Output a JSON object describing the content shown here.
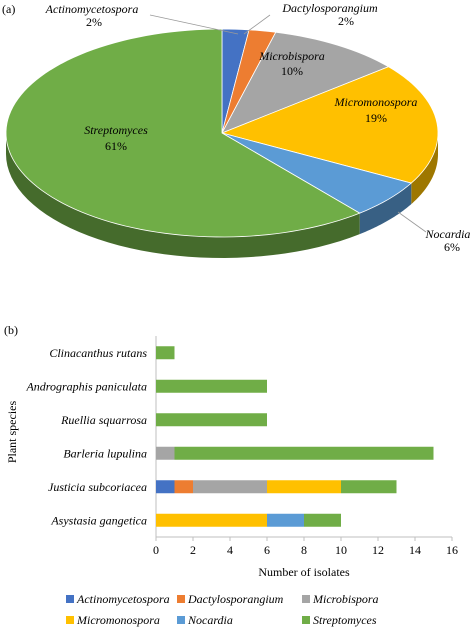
{
  "chart_data": [
    {
      "type": "pie",
      "panel_label": "(a)",
      "slices": [
        {
          "name": "Actinomycetospora",
          "pct_label": "2%",
          "value": 2,
          "color": "#4472C4"
        },
        {
          "name": "Dactylosporangium",
          "pct_label": "2%",
          "value": 2,
          "color": "#ED7D31"
        },
        {
          "name": "Microbispora",
          "pct_label": "10%",
          "value": 10,
          "color": "#A5A5A5"
        },
        {
          "name": "Micromonospora",
          "pct_label": "19%",
          "value": 19,
          "color": "#FFC000"
        },
        {
          "name": "Nocardia",
          "pct_label": "6%",
          "value": 6,
          "color": "#5B9BD5"
        },
        {
          "name": "Streptomyces",
          "pct_label": "61%",
          "value": 61,
          "color": "#70AD47"
        }
      ]
    },
    {
      "type": "bar",
      "orientation": "horizontal",
      "stacked": true,
      "panel_label": "(b)",
      "categories": [
        "Clinacanthus rutans",
        "Andrographis paniculata",
        "Ruellia squarrosa",
        "Barleria lupulina",
        "Justicia subcoriacea",
        "Asystasia gangetica"
      ],
      "series": [
        {
          "name": "Actinomycetospora",
          "color": "#4472C4",
          "values": [
            0,
            0,
            0,
            0,
            1,
            0
          ]
        },
        {
          "name": "Dactylosporangium",
          "color": "#ED7D31",
          "values": [
            0,
            0,
            0,
            0,
            1,
            0
          ]
        },
        {
          "name": "Microbispora",
          "color": "#A5A5A5",
          "values": [
            0,
            0,
            0,
            1,
            4,
            0
          ]
        },
        {
          "name": "Micromonospora",
          "color": "#FFC000",
          "values": [
            0,
            0,
            0,
            0,
            4,
            6
          ]
        },
        {
          "name": "Nocardia",
          "color": "#5B9BD5",
          "values": [
            0,
            0,
            0,
            0,
            0,
            2
          ]
        },
        {
          "name": "Streptomyces",
          "color": "#70AD47",
          "values": [
            1,
            6,
            6,
            14,
            3,
            2
          ]
        }
      ],
      "xlabel": "Number of isolates",
      "ylabel": "Plant species",
      "xlim": [
        0,
        16
      ],
      "xticks": [
        "0",
        "2",
        "4",
        "6",
        "8",
        "10",
        "12",
        "14",
        "16"
      ],
      "grid": false,
      "legend_position": "bottom"
    }
  ]
}
